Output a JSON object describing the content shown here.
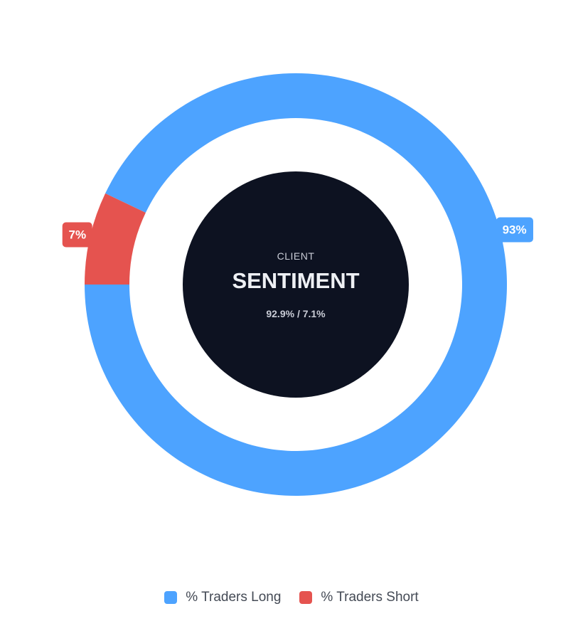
{
  "chart_data": {
    "type": "pie",
    "categories": [
      "% Traders Long",
      "% Traders Short"
    ],
    "values": [
      92.9,
      7.1
    ],
    "slice_labels": [
      "93%",
      "7%"
    ],
    "colors": [
      "#4da3ff",
      "#e5534f"
    ],
    "center": {
      "eyebrow": "CLIENT",
      "title": "SENTIMENT",
      "subtitle": "92.9% / 7.1%"
    },
    "legend": {
      "position": "bottom",
      "items": [
        {
          "label": "% Traders Long",
          "color": "#4da3ff"
        },
        {
          "label": "% Traders Short",
          "color": "#e5534f"
        }
      ]
    },
    "hub_color": "#0d1221"
  }
}
